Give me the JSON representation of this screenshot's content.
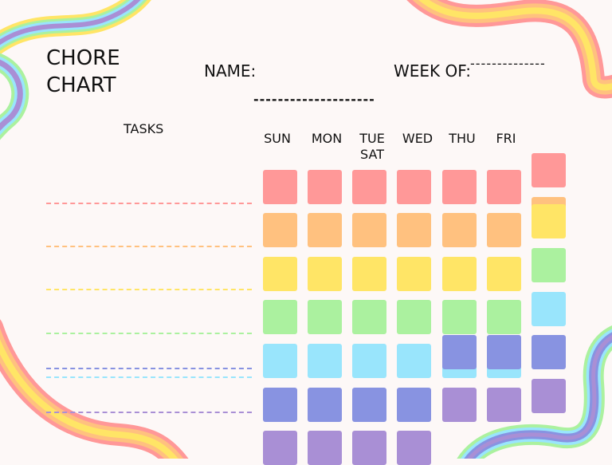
{
  "title": "CHORE\nCHART",
  "name_label": "NAME:",
  "week_label": "WEEK OF:",
  "name_line": "--------------------",
  "week_line": "--------------",
  "tasks_label": "TASKS",
  "days": [
    "SUN",
    "MON",
    "TUE\nSAT",
    "WED",
    "THU",
    "FRI"
  ],
  "colors": {
    "red": "#ff9898",
    "orange": "#ffc17f",
    "yellow": "#ffe566",
    "green": "#abf19f",
    "cyan": "#99e5fc",
    "indigo": "#8893e1",
    "purple": "#a98fd5",
    "background": "#fdf8f7"
  },
  "task_line_colors": [
    "#ff9898",
    "#ffc17f",
    "#ffe566",
    "#abf19f",
    "#8893e1",
    "#99e5fc",
    "#a98fd5"
  ],
  "box_rows": [
    [
      "red",
      "red",
      "red",
      "red",
      "red",
      "red"
    ],
    [
      "orange",
      "orange",
      "orange",
      "orange",
      "orange",
      "orange"
    ],
    [
      "yellow",
      "yellow",
      "yellow",
      "yellow",
      "yellow",
      "yellow"
    ],
    [
      "green",
      "green",
      "green",
      "green",
      "green",
      "green"
    ],
    [
      "cyan",
      "cyan",
      "cyan",
      "cyan",
      "cyan",
      "cyan"
    ],
    [
      "indigo",
      "indigo",
      "indigo",
      "indigo",
      "purple",
      "purple"
    ],
    [
      "purple",
      "purple",
      "purple",
      "purple"
    ]
  ],
  "overlay_boxes": [
    "indigo",
    "indigo"
  ],
  "extra_column": [
    "red",
    "orange",
    "yellow",
    "green",
    "cyan",
    "indigo",
    "purple"
  ]
}
